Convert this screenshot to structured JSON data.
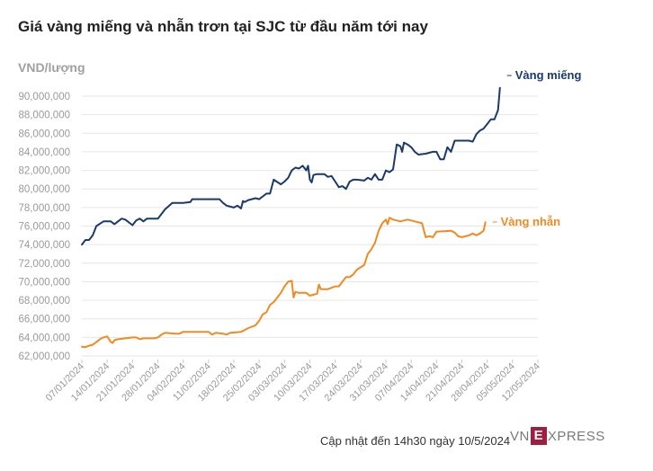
{
  "title": "Giá vàng miếng và nhẫn trơn tại SJC từ đầu năm tới nay",
  "footer": "Cập nhật đến 14h30 ngày 10/5/2024",
  "logo": {
    "prefix": "VN",
    "mark": "E",
    "suffix": "XPRESS"
  },
  "colors": {
    "mieng": "#1b3a6b",
    "nhan": "#f08a24",
    "grid": "#e6e6e6",
    "tick": "#9a9a9a"
  },
  "chart_data": {
    "type": "line",
    "title": "Giá vàng miếng và nhẫn trơn tại SJC từ đầu năm tới nay",
    "ylabel": "VND/lượng",
    "ylim": [
      62000000,
      90000000
    ],
    "xlim": [
      0,
      126
    ],
    "yticks": [
      "62,000,000",
      "64,000,000",
      "66,000,000",
      "68,000,000",
      "70,000,000",
      "72,000,000",
      "74,000,000",
      "76,000,000",
      "78,000,000",
      "80,000,000",
      "82,000,000",
      "84,000,000",
      "86,000,000",
      "88,000,000",
      "90,000,000"
    ],
    "xticks": [
      {
        "day": 0,
        "label": "07/01/2024"
      },
      {
        "day": 7,
        "label": "14/01/2024"
      },
      {
        "day": 14,
        "label": "21/01/2024"
      },
      {
        "day": 21,
        "label": "28/01/2024"
      },
      {
        "day": 28,
        "label": "04/02/2024"
      },
      {
        "day": 35,
        "label": "11/02/2024"
      },
      {
        "day": 42,
        "label": "18/02/2024"
      },
      {
        "day": 49,
        "label": "25/02/2024"
      },
      {
        "day": 56,
        "label": "03/03/2024"
      },
      {
        "day": 63,
        "label": "10/03/2024"
      },
      {
        "day": 70,
        "label": "17/03/2024"
      },
      {
        "day": 77,
        "label": "24/03/2024"
      },
      {
        "day": 84,
        "label": "31/03/2024"
      },
      {
        "day": 91,
        "label": "07/04/2024"
      },
      {
        "day": 98,
        "label": "14/04/2024"
      },
      {
        "day": 105,
        "label": "21/04/2024"
      },
      {
        "day": 112,
        "label": "28/04/2024"
      },
      {
        "day": 119,
        "label": "05/05/2024"
      },
      {
        "day": 126,
        "label": "12/05/2024"
      }
    ],
    "series": [
      {
        "name": "Vàng miếng",
        "points": [
          [
            0,
            74000000
          ],
          [
            1,
            74500000
          ],
          [
            2,
            74500000
          ],
          [
            3,
            75000000
          ],
          [
            4,
            76000000
          ],
          [
            6,
            76500000
          ],
          [
            8,
            76500000
          ],
          [
            9,
            76200000
          ],
          [
            11,
            76800000
          ],
          [
            12,
            76700000
          ],
          [
            14,
            76100000
          ],
          [
            15,
            76600000
          ],
          [
            16,
            76800000
          ],
          [
            17,
            76500000
          ],
          [
            18,
            76800000
          ],
          [
            20,
            76800000
          ],
          [
            21,
            76800000
          ],
          [
            22,
            77300000
          ],
          [
            23,
            77800000
          ],
          [
            25,
            78500000
          ],
          [
            28,
            78500000
          ],
          [
            30,
            78600000
          ],
          [
            30.5,
            78900000
          ],
          [
            38,
            78900000
          ],
          [
            39,
            78500000
          ],
          [
            40,
            78200000
          ],
          [
            42,
            78000000
          ],
          [
            43,
            78200000
          ],
          [
            44,
            77900000
          ],
          [
            44.5,
            78700000
          ],
          [
            45,
            78600000
          ],
          [
            46,
            78800000
          ],
          [
            48,
            79000000
          ],
          [
            49,
            78900000
          ],
          [
            50,
            79200000
          ],
          [
            51,
            79500000
          ],
          [
            52,
            79500000
          ],
          [
            53,
            81000000
          ],
          [
            55,
            80500000
          ],
          [
            56,
            80800000
          ],
          [
            57,
            81200000
          ],
          [
            58,
            82000000
          ],
          [
            59,
            82300000
          ],
          [
            60,
            82200000
          ],
          [
            61,
            82500000
          ],
          [
            62,
            82000000
          ],
          [
            62.5,
            82500000
          ],
          [
            63,
            81000000
          ],
          [
            63.5,
            80700000
          ],
          [
            64,
            81500000
          ],
          [
            65,
            81600000
          ],
          [
            67,
            81600000
          ],
          [
            68,
            81300000
          ],
          [
            69,
            81400000
          ],
          [
            70,
            80800000
          ],
          [
            71,
            80200000
          ],
          [
            72,
            80300000
          ],
          [
            73,
            80000000
          ],
          [
            74,
            80800000
          ],
          [
            75,
            81000000
          ],
          [
            76,
            81000000
          ],
          [
            78,
            80900000
          ],
          [
            79,
            81200000
          ],
          [
            80,
            81000000
          ],
          [
            81,
            81600000
          ],
          [
            82,
            81000000
          ],
          [
            83,
            81000000
          ],
          [
            84,
            82000000
          ],
          [
            85,
            81800000
          ],
          [
            86,
            82100000
          ],
          [
            87,
            84800000
          ],
          [
            88,
            84600000
          ],
          [
            88.5,
            84000000
          ],
          [
            89,
            85000000
          ],
          [
            90,
            84800000
          ],
          [
            91,
            84500000
          ],
          [
            92,
            84000000
          ],
          [
            93,
            83700000
          ],
          [
            95,
            83800000
          ],
          [
            97,
            84000000
          ],
          [
            98,
            84000000
          ],
          [
            99,
            83200000
          ],
          [
            100,
            83200000
          ],
          [
            101,
            84500000
          ],
          [
            102,
            84000000
          ],
          [
            103,
            85200000
          ],
          [
            107,
            85200000
          ],
          [
            108,
            85100000
          ],
          [
            109,
            85900000
          ],
          [
            110,
            86300000
          ],
          [
            111,
            86500000
          ],
          [
            112,
            87000000
          ],
          [
            113,
            87500000
          ],
          [
            114,
            87500000
          ],
          [
            115,
            88500000
          ],
          [
            115.5,
            90900000
          ]
        ]
      },
      {
        "name": "Vàng nhẫn",
        "points": [
          [
            0,
            63000000
          ],
          [
            1,
            62950000
          ],
          [
            2,
            63100000
          ],
          [
            3,
            63200000
          ],
          [
            5,
            63800000
          ],
          [
            6,
            64000000
          ],
          [
            7,
            64100000
          ],
          [
            8,
            63500000
          ],
          [
            8.5,
            63400000
          ],
          [
            9,
            63700000
          ],
          [
            10,
            63800000
          ],
          [
            12,
            63900000
          ],
          [
            14,
            64000000
          ],
          [
            15,
            64000000
          ],
          [
            16,
            63800000
          ],
          [
            17,
            63900000
          ],
          [
            20,
            63900000
          ],
          [
            21,
            64000000
          ],
          [
            22,
            64300000
          ],
          [
            23,
            64500000
          ],
          [
            26,
            64400000
          ],
          [
            27,
            64400000
          ],
          [
            28,
            64600000
          ],
          [
            35,
            64600000
          ],
          [
            36,
            64300000
          ],
          [
            37,
            64500000
          ],
          [
            39,
            64400000
          ],
          [
            40,
            64300000
          ],
          [
            41,
            64500000
          ],
          [
            44,
            64600000
          ],
          [
            45,
            64800000
          ],
          [
            46,
            65000000
          ],
          [
            48,
            65300000
          ],
          [
            49,
            65800000
          ],
          [
            50,
            66500000
          ],
          [
            51,
            66700000
          ],
          [
            52,
            67500000
          ],
          [
            53,
            67800000
          ],
          [
            54,
            68300000
          ],
          [
            55,
            68800000
          ],
          [
            56,
            69500000
          ],
          [
            57,
            70000000
          ],
          [
            58,
            70100000
          ],
          [
            58.5,
            68300000
          ],
          [
            59,
            68900000
          ],
          [
            60,
            68800000
          ],
          [
            62,
            68800000
          ],
          [
            63,
            68500000
          ],
          [
            64,
            68600000
          ],
          [
            65,
            68700000
          ],
          [
            65.5,
            69700000
          ],
          [
            66,
            69200000
          ],
          [
            68,
            69200000
          ],
          [
            70,
            69500000
          ],
          [
            71,
            69500000
          ],
          [
            72,
            70000000
          ],
          [
            73,
            70500000
          ],
          [
            74,
            70500000
          ],
          [
            75,
            70800000
          ],
          [
            76,
            71300000
          ],
          [
            78,
            71800000
          ],
          [
            79,
            73000000
          ],
          [
            80,
            73500000
          ],
          [
            81,
            74200000
          ],
          [
            82,
            75500000
          ],
          [
            83,
            76300000
          ],
          [
            84,
            76700000
          ],
          [
            84.5,
            76200000
          ],
          [
            85,
            76900000
          ],
          [
            86,
            76700000
          ],
          [
            87,
            76600000
          ],
          [
            88,
            76500000
          ],
          [
            90,
            76700000
          ],
          [
            92,
            76500000
          ],
          [
            94,
            76300000
          ],
          [
            95,
            74800000
          ],
          [
            96,
            74900000
          ],
          [
            97,
            74800000
          ],
          [
            98,
            75400000
          ],
          [
            102,
            75500000
          ],
          [
            103,
            75300000
          ],
          [
            104,
            74900000
          ],
          [
            105,
            74800000
          ],
          [
            106,
            74900000
          ],
          [
            107,
            75000000
          ],
          [
            108,
            75200000
          ],
          [
            109,
            75000000
          ],
          [
            110,
            75200000
          ],
          [
            111,
            75500000
          ],
          [
            111.5,
            76400000
          ]
        ]
      }
    ]
  }
}
